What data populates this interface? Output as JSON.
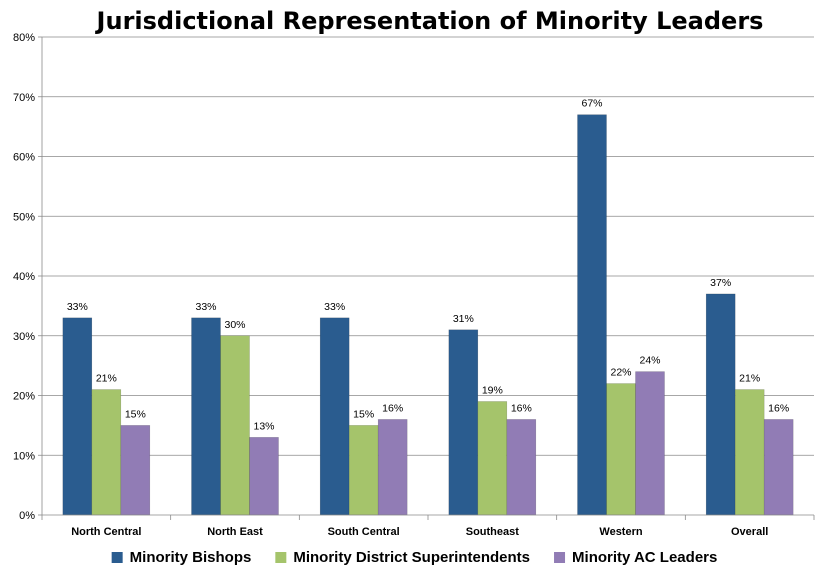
{
  "chart_data": {
    "type": "bar",
    "title": "Jurisdictional Representation of Minority Leaders",
    "xlabel": "",
    "ylabel": "",
    "categories": [
      "North Central",
      "North East",
      "South Central",
      "Southeast",
      "Western",
      "Overall"
    ],
    "series": [
      {
        "name": "Minority Bishops",
        "color": "#2a5c8f",
        "values": [
          33,
          33,
          33,
          31,
          67,
          37
        ],
        "labels": [
          "33%",
          "33%",
          "33%",
          "31%",
          "67%",
          "37%"
        ]
      },
      {
        "name": "Minority District Superintendents",
        "color": "#a5c46b",
        "values": [
          21,
          30,
          15,
          19,
          22,
          21
        ],
        "labels": [
          "21%",
          "30%",
          "15%",
          "19%",
          "22%",
          "21%"
        ]
      },
      {
        "name": "Minority AC Leaders",
        "color": "#917cb5",
        "values": [
          15,
          13,
          16,
          16,
          24,
          16
        ],
        "labels": [
          "15%",
          "13%",
          "16%",
          "16%",
          "24%",
          "16%"
        ]
      }
    ],
    "ylim": [
      0,
      80
    ],
    "yticks": [
      "0%",
      "10%",
      "20%",
      "30%",
      "40%",
      "50%",
      "60%",
      "70%",
      "80%"
    ],
    "grid": true,
    "legend_position": "bottom"
  }
}
